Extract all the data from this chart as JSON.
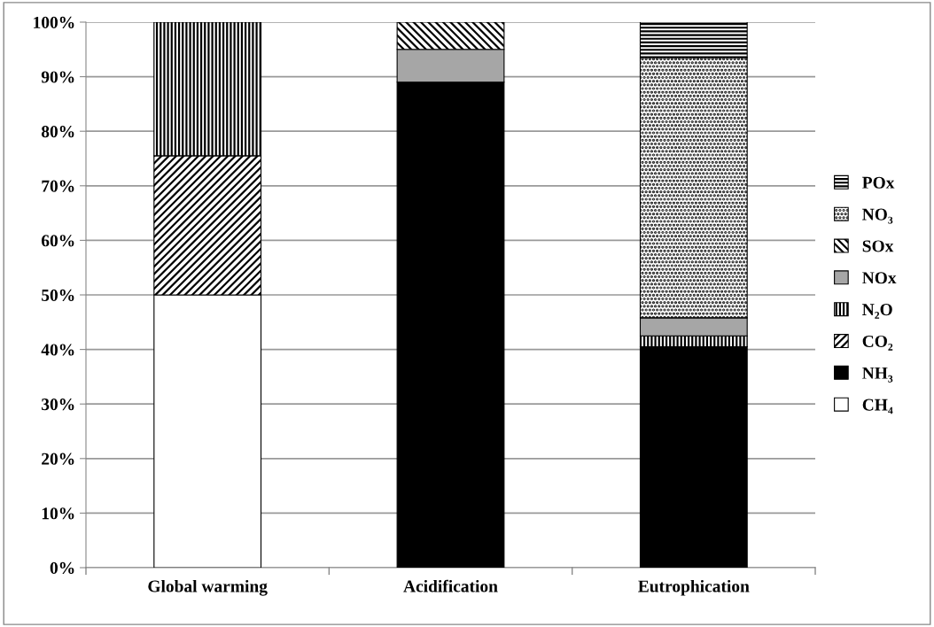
{
  "chart_data": {
    "type": "bar",
    "stacked": true,
    "categories": [
      "Global warming",
      "Acidification",
      "Eutrophication"
    ],
    "series": [
      {
        "name": "CH₄",
        "color": "#ffffff",
        "values": [
          50,
          null,
          null
        ]
      },
      {
        "name": "NH₃",
        "color": "#000000",
        "values": [
          null,
          89,
          40.5
        ]
      },
      {
        "name": "CO₂",
        "color": "#000000",
        "values": [
          25.5,
          null,
          null
        ]
      },
      {
        "name": "N₂O",
        "color": "#000000",
        "values": [
          24.5,
          null,
          2
        ]
      },
      {
        "name": "NOx",
        "color": "#a6a6a6",
        "values": [
          null,
          6,
          3.3
        ]
      },
      {
        "name": "SOx",
        "color": "#000000",
        "values": [
          null,
          5,
          null
        ]
      },
      {
        "name": "NO₃",
        "color": "#000000",
        "values": [
          null,
          null,
          47.7
        ]
      },
      {
        "name": "POx",
        "color": "#000000",
        "values": [
          null,
          null,
          6.5
        ]
      }
    ],
    "ylim": [
      0,
      100
    ],
    "yticks": [
      {
        "value": 0,
        "label": "0%"
      },
      {
        "value": 10,
        "label": "10%"
      },
      {
        "value": 20,
        "label": "20%"
      },
      {
        "value": 30,
        "label": "30%"
      },
      {
        "value": 40,
        "label": "40%"
      },
      {
        "value": 50,
        "label": "50%"
      },
      {
        "value": 60,
        "label": "60%"
      },
      {
        "value": 70,
        "label": "70%"
      },
      {
        "value": 80,
        "label": "80%"
      },
      {
        "value": 90,
        "label": "90%"
      },
      {
        "value": 100,
        "label": "100%"
      }
    ],
    "grid": "y",
    "legend": "right"
  }
}
